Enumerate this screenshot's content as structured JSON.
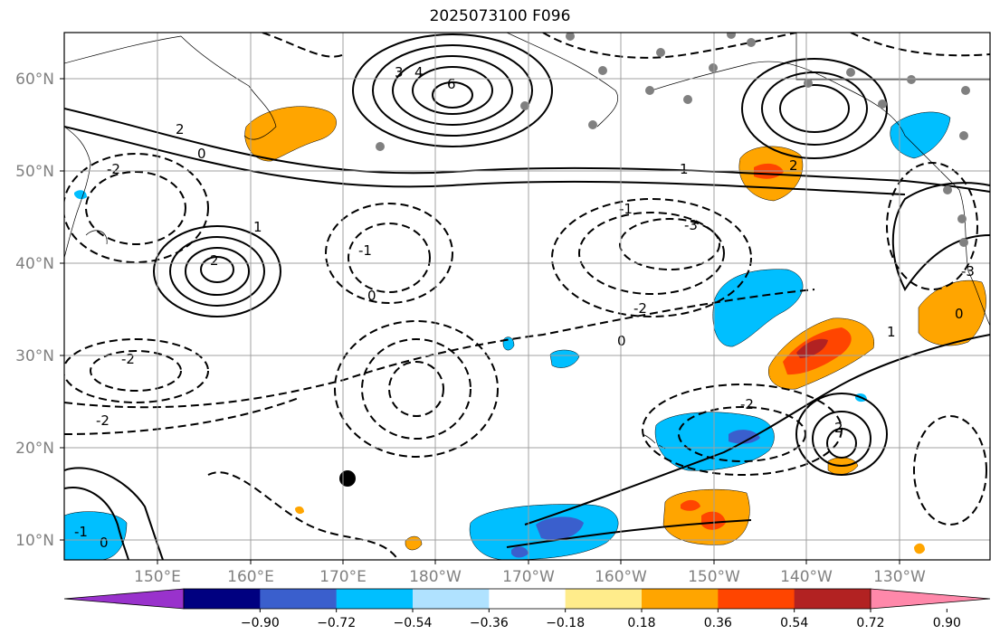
{
  "title": "2025073100 F096",
  "latitude_labels": [
    "60°N",
    "50°N",
    "40°N",
    "30°N",
    "20°N",
    "10°N"
  ],
  "longitude_labels": [
    "150°E",
    "160°E",
    "170°E",
    "180°W",
    "170°W",
    "160°W",
    "150°W",
    "140°W",
    "130°W"
  ],
  "colorbar": {
    "tick_labels": [
      "−0.90",
      "−0.72",
      "−0.54",
      "−0.36",
      "−0.18",
      "0.18",
      "0.36",
      "0.54",
      "0.72",
      "0.90"
    ],
    "colors": [
      "#9932cc",
      "#000080",
      "#3a5fcd",
      "#00bfff",
      "#b0e2ff",
      "#ffffff",
      "#ffec8b",
      "#ffa500",
      "#ff4500",
      "#b22222",
      "#ff88aa"
    ]
  },
  "colors": {
    "positive_fill": "#ffa500",
    "strong_positive_fill": "#ff4500",
    "negative_fill": "#00bfff",
    "strong_negative_fill": "#3a5fcd",
    "station_marker": "#808080",
    "grid": "#a0a0a0"
  },
  "contour_labels": [
    "6",
    "4",
    "3",
    "2",
    "1",
    "0",
    "-1",
    "-2",
    "-3"
  ]
}
